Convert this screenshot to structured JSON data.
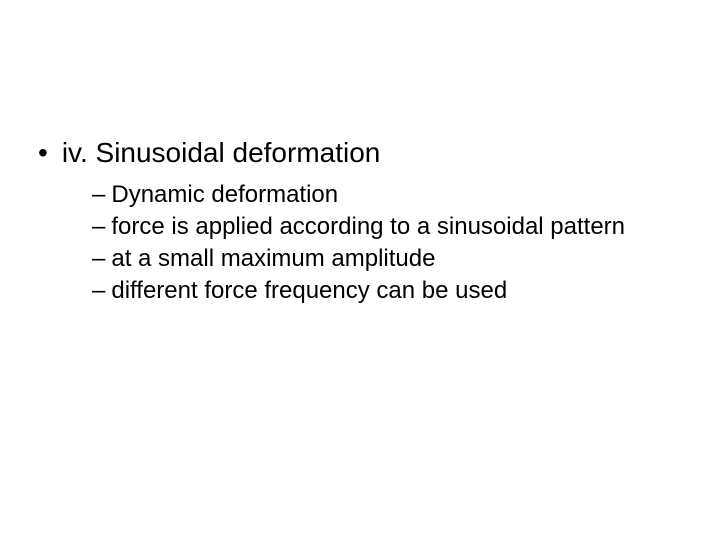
{
  "slide": {
    "background_color": "#ffffff",
    "text_color": "#000000",
    "font_family": "Arial",
    "main_bullet": {
      "marker": "•",
      "text": "iv. Sinusoidal deformation",
      "font_size_pt": 28
    },
    "sub_bullets": {
      "marker": "–",
      "font_size_pt": 24,
      "items": [
        "Dynamic deformation",
        "force is applied according to a sinusoidal pattern",
        "at a small maximum amplitude",
        "different force frequency can be used"
      ]
    }
  }
}
